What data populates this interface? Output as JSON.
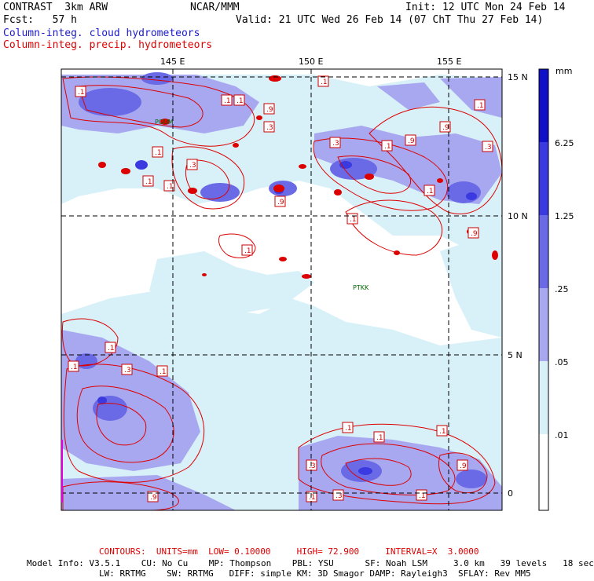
{
  "header": {
    "model": "CONTRAST  3km ARW",
    "center": "NCAR/MMM",
    "init": "Init: 12 UTC Mon 24 Feb 14",
    "fcst": "Fcst:   57 h",
    "valid": "Valid: 21 UTC Wed 26 Feb 14 (07 ChT Thu 27 Feb 14)",
    "field1": "Column-integ. cloud hydrometeors",
    "field2": "Column-integ. precip. hydrometeors"
  },
  "axes": {
    "lon_labels": [
      "145 E",
      "150 E",
      "155 E"
    ],
    "lat_labels": [
      "15 N",
      "10 N",
      "5 N",
      "0"
    ]
  },
  "colorbar": {
    "unit": "mm",
    "levels": [
      "6.25",
      "1.25",
      ".25",
      ".05",
      ".01"
    ],
    "colors": [
      "#1010c8",
      "#3a3ae0",
      "#6a6ae6",
      "#a8a8f0",
      "#d8f0f8",
      "#ffffff"
    ]
  },
  "stations": [
    "PGUM",
    "PTKK"
  ],
  "contour_labels": [
    ".1",
    ".3",
    ".9"
  ],
  "footer": {
    "contours": "CONTOURS:  UNITS=mm  LOW= 0.10000     HIGH= 72.900     INTERVAL=X  3.0000",
    "info1": "Model Info: V3.5.1    CU: No Cu    MP: Thompson    PBL: YSU      SF: Noah LSM     3.0 km   39 levels   18 sec",
    "info2": "LW: RRTMG    SW: RRTMG   DIFF: simple KM: 3D Smagor DAMP: Rayleigh3  SFLAY: Rev MM5"
  }
}
